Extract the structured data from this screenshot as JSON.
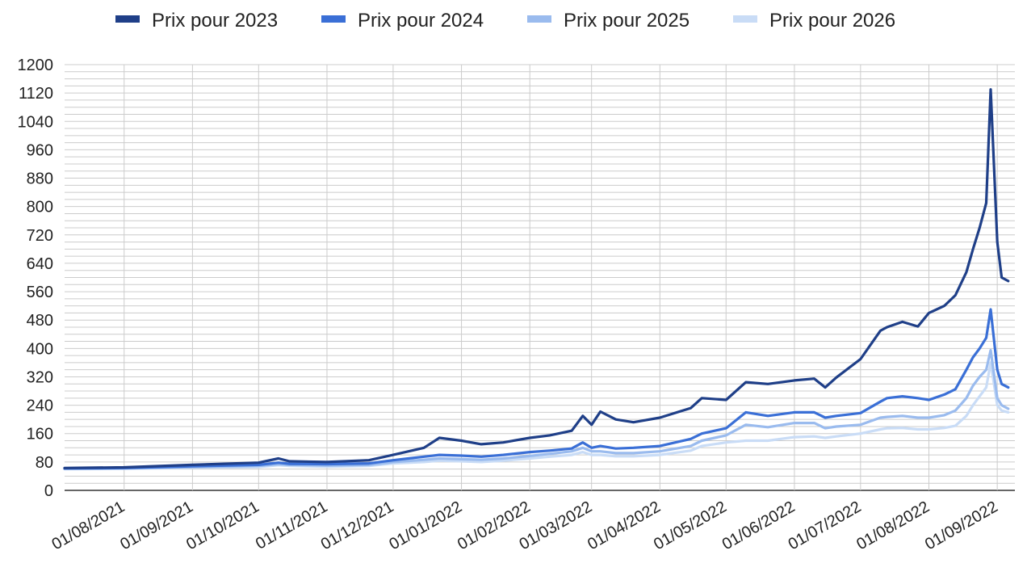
{
  "chart_data": {
    "type": "line",
    "legend_position": "top",
    "grid": true,
    "x_start": "2021-07-15",
    "x_end": "2022-09-05",
    "x_axis_range": [
      "2021-07-05",
      "2022-09-09"
    ],
    "xticks": [
      "01/08/2021",
      "01/09/2021",
      "01/10/2021",
      "01/11/2021",
      "01/12/2021",
      "01/01/2022",
      "01/02/2022",
      "01/03/2022",
      "01/04/2022",
      "01/05/2022",
      "01/06/2022",
      "01/07/2022",
      "01/08/2022",
      "01/09/2022"
    ],
    "ylim": [
      0,
      1200
    ],
    "yticks": [
      0,
      80,
      160,
      240,
      320,
      400,
      480,
      560,
      640,
      720,
      800,
      880,
      960,
      1040,
      1120,
      1200
    ],
    "x_dates": [
      "2021-07-05",
      "2021-08-01",
      "2021-09-01",
      "2021-10-01",
      "2021-10-10",
      "2021-10-15",
      "2021-11-01",
      "2021-11-20",
      "2021-12-01",
      "2021-12-15",
      "2021-12-22",
      "2022-01-01",
      "2022-01-10",
      "2022-01-20",
      "2022-02-01",
      "2022-02-10",
      "2022-02-20",
      "2022-02-25",
      "2022-03-01",
      "2022-03-05",
      "2022-03-12",
      "2022-03-20",
      "2022-04-01",
      "2022-04-15",
      "2022-04-20",
      "2022-05-01",
      "2022-05-10",
      "2022-05-20",
      "2022-06-01",
      "2022-06-10",
      "2022-06-15",
      "2022-06-20",
      "2022-07-01",
      "2022-07-10",
      "2022-07-13",
      "2022-07-20",
      "2022-07-27",
      "2022-08-01",
      "2022-08-08",
      "2022-08-13",
      "2022-08-18",
      "2022-08-21",
      "2022-08-24",
      "2022-08-27",
      "2022-08-29",
      "2022-09-01",
      "2022-09-03",
      "2022-09-06"
    ],
    "series": [
      {
        "name": "Prix pour 2023",
        "color": "#1f3f88",
        "values": [
          63,
          65,
          72,
          78,
          90,
          82,
          80,
          85,
          100,
          120,
          148,
          140,
          130,
          135,
          148,
          155,
          168,
          210,
          185,
          222,
          200,
          192,
          205,
          232,
          260,
          255,
          305,
          300,
          310,
          315,
          290,
          318,
          370,
          450,
          460,
          475,
          462,
          500,
          520,
          550,
          615,
          680,
          740,
          810,
          1130,
          700,
          600,
          590
        ]
      },
      {
        "name": "Prix pour 2024",
        "color": "#3a6fd6",
        "values": [
          62,
          63,
          68,
          72,
          78,
          75,
          74,
          76,
          85,
          95,
          100,
          98,
          95,
          100,
          108,
          112,
          118,
          135,
          120,
          125,
          118,
          120,
          125,
          145,
          160,
          175,
          220,
          210,
          220,
          220,
          205,
          210,
          218,
          250,
          260,
          265,
          260,
          255,
          270,
          285,
          340,
          375,
          400,
          430,
          510,
          340,
          300,
          290
        ]
      },
      {
        "name": "Prix pour 2025",
        "color": "#9abbee",
        "values": [
          61,
          62,
          66,
          69,
          74,
          72,
          70,
          72,
          80,
          86,
          90,
          88,
          86,
          90,
          97,
          103,
          110,
          120,
          110,
          110,
          105,
          105,
          110,
          125,
          140,
          155,
          185,
          178,
          190,
          190,
          175,
          180,
          185,
          205,
          207,
          210,
          205,
          205,
          212,
          225,
          260,
          295,
          320,
          340,
          395,
          260,
          240,
          230
        ]
      },
      {
        "name": "Prix pour 2026",
        "color": "#c9dcf6",
        "values": [
          60,
          61,
          64,
          66,
          71,
          69,
          67,
          69,
          76,
          80,
          84,
          82,
          80,
          84,
          90,
          95,
          100,
          108,
          100,
          100,
          96,
          96,
          100,
          112,
          125,
          135,
          140,
          140,
          150,
          152,
          148,
          152,
          160,
          172,
          175,
          176,
          172,
          172,
          176,
          182,
          210,
          240,
          265,
          290,
          360,
          240,
          225,
          220
        ]
      }
    ]
  }
}
